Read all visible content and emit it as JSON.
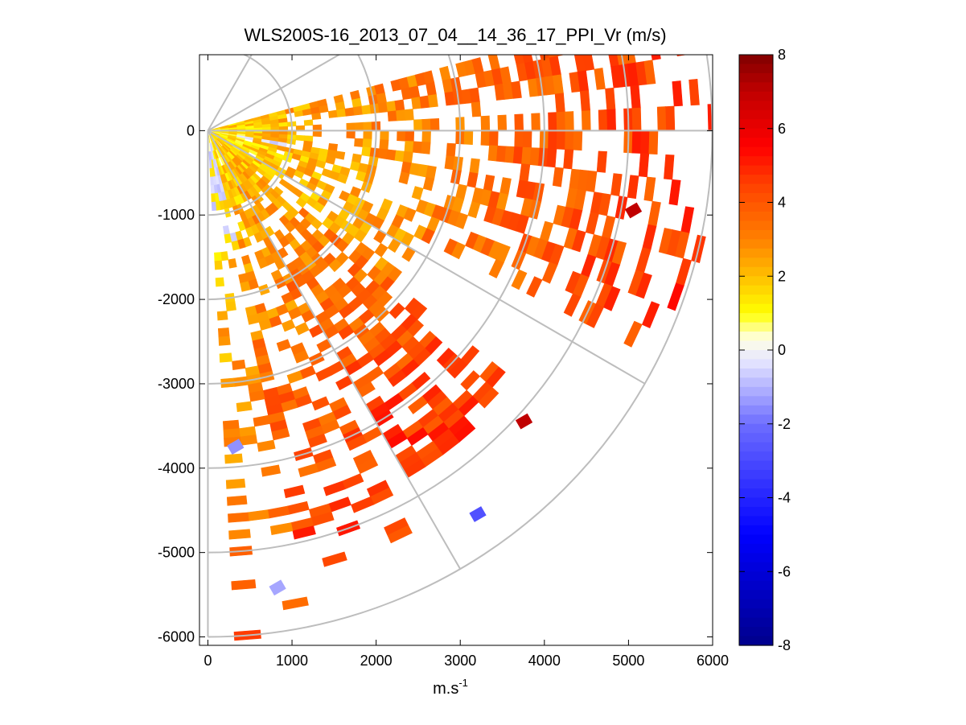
{
  "chart_data": {
    "type": "heatmap",
    "title": "WLS200S-16_2013_07_04__14_36_17_PPI_Vr (m/s)",
    "xlabel_base": "m.s",
    "xlabel_exp": "-1",
    "ylabel": "",
    "xlim": [
      -100,
      6000
    ],
    "ylim": [
      -6100,
      900
    ],
    "xticks": [
      0,
      1000,
      2000,
      3000,
      4000,
      5000,
      6000
    ],
    "xtick_labels": [
      "0",
      "1000",
      "2000",
      "3000",
      "4000",
      "5000",
      "6000"
    ],
    "yticks": [
      0,
      -1000,
      -2000,
      -3000,
      -4000,
      -5000,
      -6000
    ],
    "ytick_labels": [
      "0",
      "-1000",
      "-2000",
      "-3000",
      "-4000",
      "-5000",
      "-6000"
    ],
    "grid": "polar",
    "polar_grid": {
      "range_rings_m": [
        1000,
        2000,
        3000,
        4000,
        5000,
        6000
      ],
      "spoke_angles_deg": [
        60,
        30,
        0,
        -30,
        -60,
        -90
      ]
    },
    "scan": {
      "azimuth_start_deg": 15,
      "azimuth_end_deg": -87,
      "azimuth_step_deg": 3,
      "range_start_m": 50,
      "range_max_m": 6000,
      "range_step_m": 100,
      "sectors": [
        {
          "azimuth_from_deg": 15,
          "azimuth_to_deg": 5,
          "vr_near": 1.5,
          "vr_far": 4.6,
          "coverage": 0.85,
          "max_range_m": 6000
        },
        {
          "azimuth_from_deg": 5,
          "azimuth_to_deg": -5,
          "vr_near": 1.2,
          "vr_far": 4.8,
          "coverage": 0.5,
          "max_range_m": 6000
        },
        {
          "azimuth_from_deg": -5,
          "azimuth_to_deg": -28,
          "vr_near": 1.0,
          "vr_far": 4.7,
          "coverage": 0.62,
          "max_range_m": 6000
        },
        {
          "azimuth_from_deg": -28,
          "azimuth_to_deg": -40,
          "vr_near": 1.2,
          "vr_far": 4.0,
          "coverage": 0.7,
          "max_range_m": 2800
        },
        {
          "azimuth_from_deg": -40,
          "azimuth_to_deg": -62,
          "vr_near": 1.3,
          "vr_far": 5.5,
          "coverage": 0.65,
          "max_range_m": 4700
        },
        {
          "azimuth_from_deg": -62,
          "azimuth_to_deg": -78,
          "vr_near": 1.0,
          "vr_far": 5.0,
          "coverage": 0.55,
          "max_range_m": 5300
        },
        {
          "azimuth_from_deg": -78,
          "azimuth_to_deg": -87,
          "vr_near": 0.8,
          "vr_far": 3.8,
          "coverage": 0.3,
          "max_range_m": 6000
        }
      ],
      "negative_patches": [
        {
          "azimuth_from_deg": -75,
          "azimuth_to_deg": -88,
          "range_from_m": 100,
          "range_to_m": 1400,
          "vr": -0.6
        },
        {
          "azimuth_from_deg": -8,
          "azimuth_to_deg": -12,
          "range_from_m": 300,
          "range_to_m": 900,
          "vr": -0.5
        }
      ],
      "notable_cells": [
        {
          "x_m": 3200,
          "y_m": -4550,
          "vr": -2.8
        },
        {
          "x_m": 820,
          "y_m": -5420,
          "vr": -1.2
        },
        {
          "x_m": 320,
          "y_m": -3750,
          "vr": -1.5
        },
        {
          "x_m": 3750,
          "y_m": -3450,
          "vr": 7.0
        },
        {
          "x_m": 5050,
          "y_m": -950,
          "vr": 7.0
        }
      ]
    },
    "colorbar": {
      "label": "",
      "range": [
        -8,
        8
      ],
      "ticks": [
        8,
        6,
        4,
        2,
        0,
        -2,
        -4,
        -6,
        -8
      ],
      "tick_labels": [
        "8",
        "6",
        "4",
        "2",
        "0",
        "-2",
        "-4",
        "-6",
        "-8"
      ],
      "stops": [
        {
          "v": -8,
          "color": "#00008b"
        },
        {
          "v": -5,
          "color": "#0000ff"
        },
        {
          "v": -2,
          "color": "#6e6eff"
        },
        {
          "v": -0.3,
          "color": "#e6e6ff"
        },
        {
          "v": 0.3,
          "color": "#ffffe6"
        },
        {
          "v": 1,
          "color": "#ffff00"
        },
        {
          "v": 2,
          "color": "#ffbf00"
        },
        {
          "v": 3,
          "color": "#ff8000"
        },
        {
          "v": 4.5,
          "color": "#ff4000"
        },
        {
          "v": 5.5,
          "color": "#ff0000"
        },
        {
          "v": 7,
          "color": "#c00000"
        },
        {
          "v": 8,
          "color": "#800000"
        }
      ]
    }
  }
}
